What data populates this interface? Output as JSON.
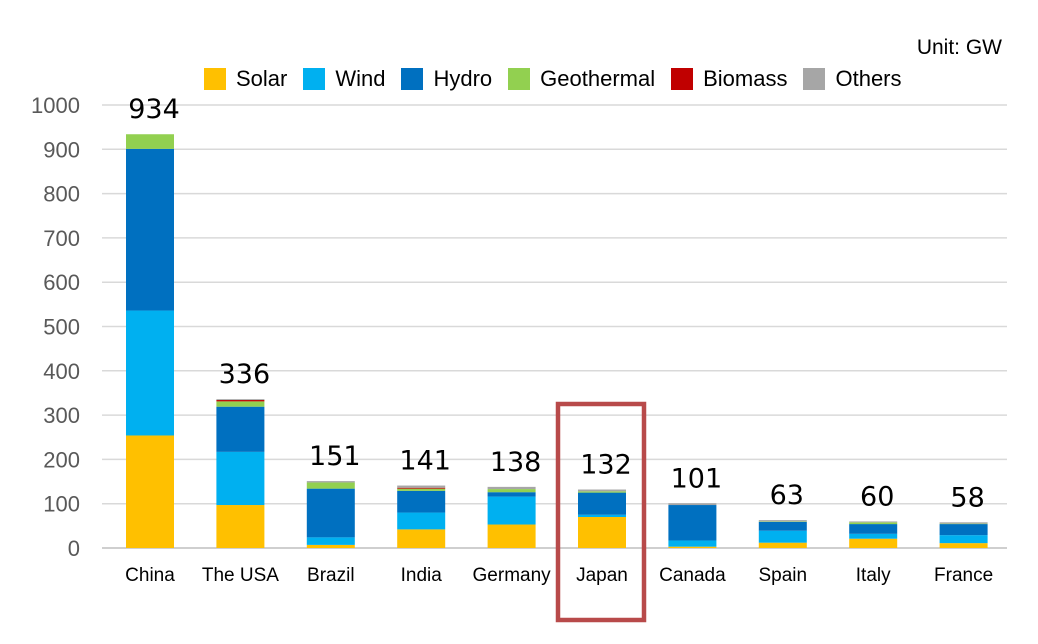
{
  "unit_label": "Unit: GW",
  "chart_data": {
    "type": "bar",
    "stacked": true,
    "categories": [
      "China",
      "The USA",
      "Brazil",
      "India",
      "Germany",
      "Japan",
      "Canada",
      "Spain",
      "Italy",
      "France"
    ],
    "totals": [
      934,
      336,
      151,
      141,
      138,
      132,
      101,
      63,
      60,
      58
    ],
    "series": [
      {
        "name": "Solar",
        "color": "#FFC000",
        "values": [
          254,
          97,
          7,
          42,
          53,
          70,
          3,
          12,
          21,
          11
        ]
      },
      {
        "name": "Wind",
        "color": "#00B0F0",
        "values": [
          282,
          120,
          17,
          38,
          63,
          5,
          14,
          27,
          11,
          18
        ]
      },
      {
        "name": "Hydro",
        "color": "#0070C0",
        "values": [
          365,
          102,
          110,
          49,
          10,
          50,
          80,
          20,
          22,
          25
        ]
      },
      {
        "name": "Geothermal",
        "color": "#92D050",
        "values": [
          33,
          12,
          14,
          5,
          7,
          3,
          0,
          1,
          4,
          1
        ]
      },
      {
        "name": "Biomass",
        "color": "#C00000",
        "values": [
          0,
          3,
          0,
          2,
          0,
          0,
          0,
          0,
          0,
          0
        ]
      },
      {
        "name": "Others",
        "color": "#A6A6A6",
        "values": [
          0,
          2,
          3,
          5,
          5,
          4,
          4,
          3,
          2,
          3
        ]
      }
    ],
    "ylim": [
      0,
      1000
    ],
    "yticks": [
      0,
      100,
      200,
      300,
      400,
      500,
      600,
      700,
      800,
      900,
      1000
    ],
    "grid": true,
    "legend_position": "top",
    "highlight_category": "Japan",
    "highlight_color": "#B84A4A",
    "title": "",
    "xlabel": "",
    "ylabel": ""
  }
}
